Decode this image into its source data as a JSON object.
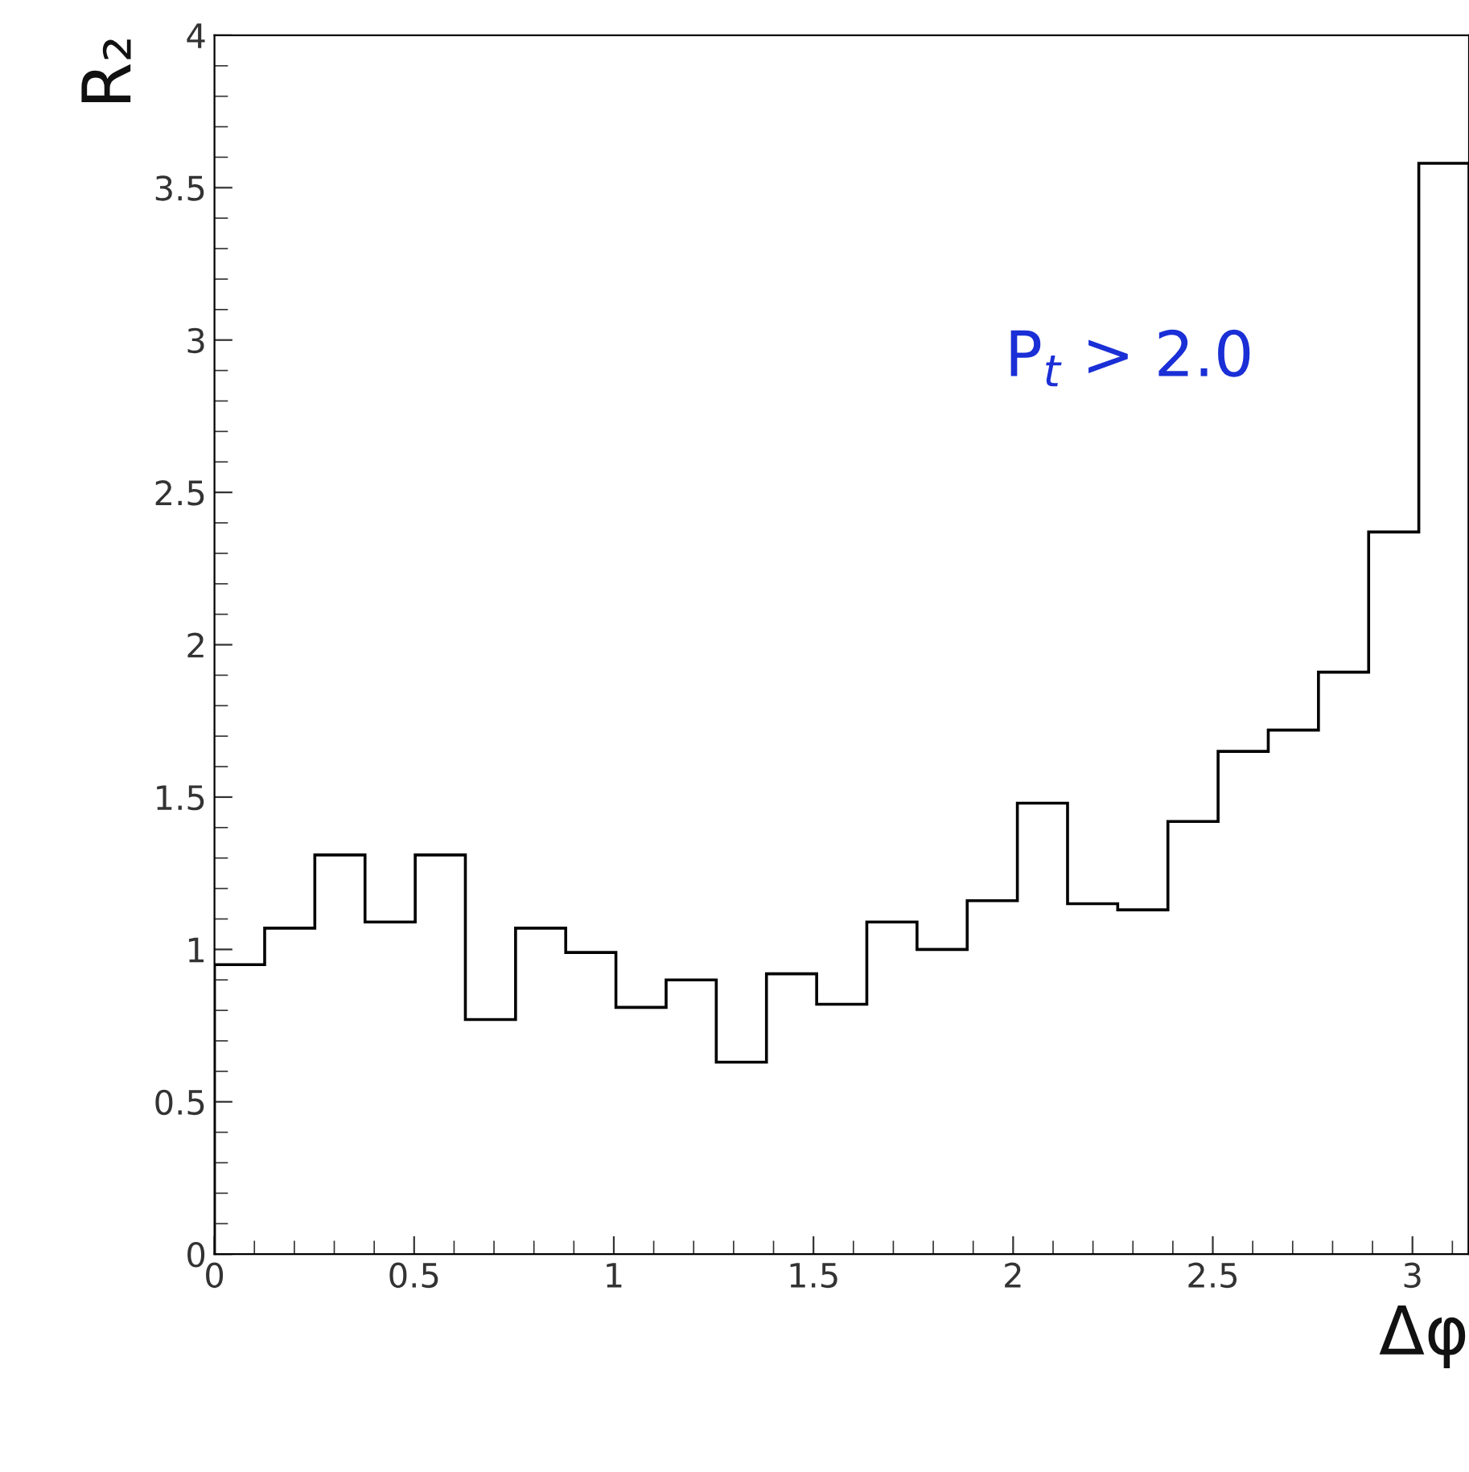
{
  "chart_data": {
    "type": "histogram",
    "bins": [
      0,
      0.1257,
      0.2513,
      0.377,
      0.5027,
      0.6283,
      0.754,
      0.8796,
      1.0053,
      1.131,
      1.2566,
      1.3823,
      1.508,
      1.6336,
      1.7593,
      1.885,
      2.0106,
      2.1363,
      2.2619,
      2.3876,
      2.5133,
      2.6389,
      2.7646,
      2.8903,
      3.0159,
      3.1416
    ],
    "values": [
      0.95,
      1.07,
      1.31,
      1.09,
      1.31,
      0.77,
      1.07,
      0.99,
      0.81,
      0.9,
      0.63,
      0.92,
      0.82,
      1.09,
      1.0,
      1.16,
      1.48,
      1.15,
      1.13,
      1.42,
      1.65,
      1.72,
      1.91,
      2.37,
      3.58
    ],
    "color": "#000000",
    "xlabel": "Δφ",
    "ylabel": "R₂",
    "xlim": [
      0,
      3.1416
    ],
    "ylim": [
      0,
      4
    ],
    "xticks": [
      0,
      0.5,
      1,
      1.5,
      2,
      2.5,
      3
    ],
    "yticks": [
      0,
      0.5,
      1,
      1.5,
      2,
      2.5,
      3,
      3.5,
      4
    ],
    "annotations": [
      "P$_{t}$ > 2.0"
    ],
    "grid": false
  }
}
